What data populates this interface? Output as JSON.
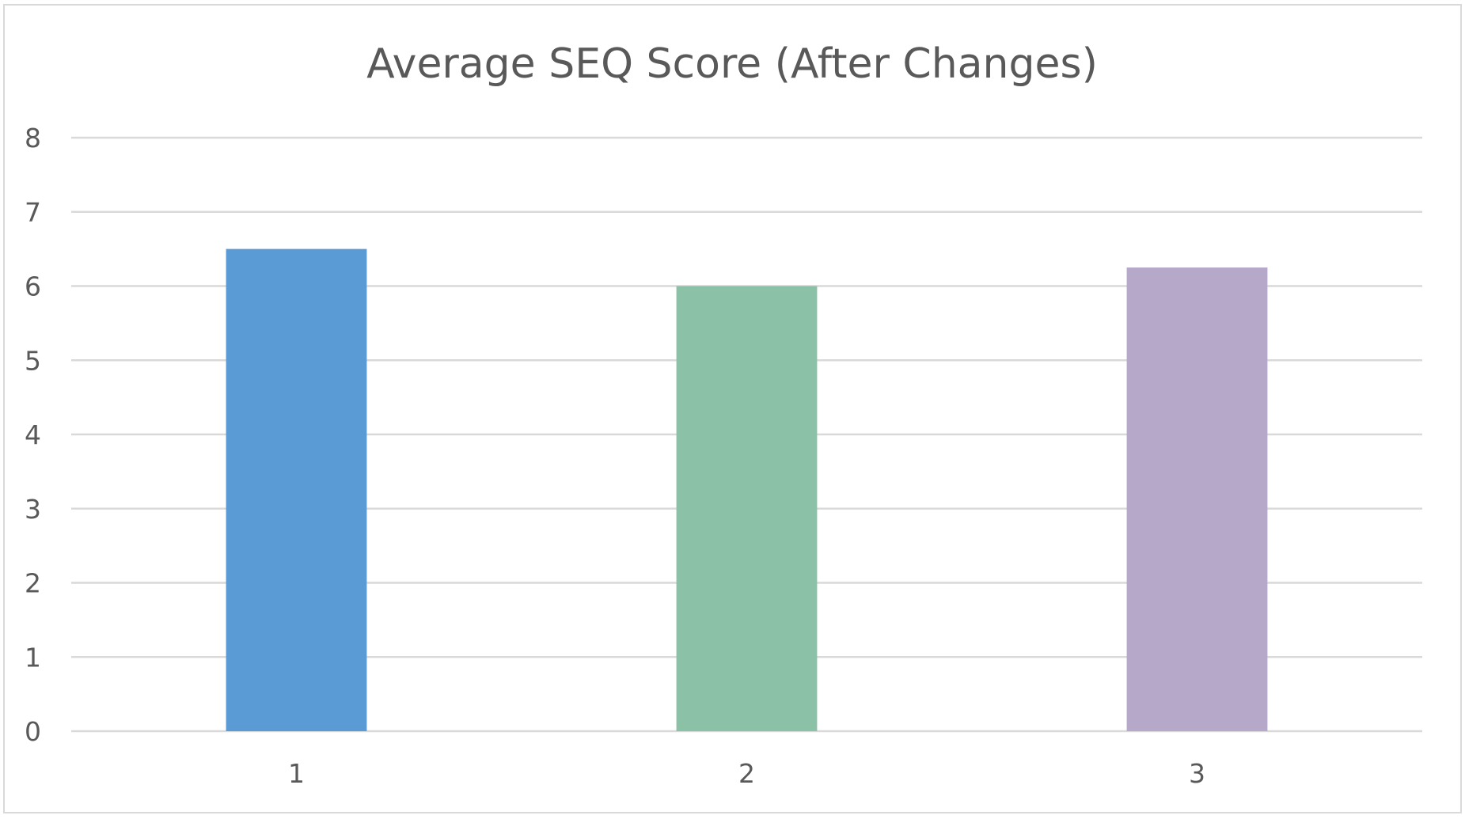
{
  "chart_data": {
    "type": "bar",
    "title": "Average SEQ Score (After Changes)",
    "xlabel": "",
    "ylabel": "",
    "categories": [
      "1",
      "2",
      "3"
    ],
    "values": [
      6.5,
      6.0,
      6.25
    ],
    "ylim": [
      0,
      8
    ],
    "yticks": [
      "0",
      "1",
      "2",
      "3",
      "4",
      "5",
      "6",
      "7",
      "8"
    ],
    "grid": true,
    "legend": "none",
    "colors": [
      "#5b9bd5",
      "#8bc1a6",
      "#b6a8c9"
    ]
  }
}
